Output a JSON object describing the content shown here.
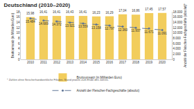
{
  "chart_data": {
    "type": "bar",
    "title": "Deutschland (2010–2020)",
    "categories": [
      "2010",
      "2011",
      "2012",
      "2013",
      "2014",
      "2015",
      "2016",
      "2017",
      "2018",
      "2019",
      "2020"
    ],
    "series": [
      {
        "name": "Bruttoumsatz (in Milliarden Euro)",
        "type": "bar",
        "color": "#f2cd5c",
        "values": [
          15.98,
          16.41,
          16.41,
          16.43,
          16.41,
          16.23,
          16.29,
          17.04,
          16.86,
          17.45,
          17.57
        ],
        "value_labels": [
          "15,98",
          "16,41",
          "16,41",
          "16,43",
          "16,41",
          "16,23",
          "16,29",
          "17,04",
          "16,86",
          "17,45",
          "17,57"
        ]
      },
      {
        "name": "Anzahl der Fleischer-Fachgeschäfte (absolut)",
        "type": "line",
        "axis": "y2",
        "color": "#5f7596",
        "marker": "circle",
        "line_style": "dash",
        "values": [
          15484,
          14669,
          14372,
          13921,
          13559,
          13158,
          12797,
          12360,
          11937,
          11671,
          11091
        ],
        "value_labels": [
          "15.484",
          "14.669",
          "14.372",
          "13.921",
          "13.559",
          "13.158",
          "12.797",
          "12.360",
          "11.937",
          "11.671",
          "11.091"
        ]
      }
    ],
    "ylabel": "Bruttoumsatz (in Milliarden Euro)",
    "y2label": "Anzahl der Fleischer-Fachgeschäfte (absolut)*",
    "ylim": [
      0,
      18
    ],
    "yticks": [
      0,
      2,
      4,
      6,
      8,
      10,
      12,
      14,
      16,
      18
    ],
    "y2lim": [
      0,
      18000
    ],
    "y2ticks": [
      0,
      {
        "value": 2000,
        "label": "2.000"
      },
      {
        "value": 4000,
        "label": "4.000"
      },
      {
        "value": 6000,
        "label": "6.000"
      },
      {
        "value": 8000,
        "label": "8.000"
      },
      {
        "value": 10000,
        "label": "10.000"
      },
      {
        "value": 12000,
        "label": "12.000"
      },
      {
        "value": 14000,
        "label": "14.000"
      },
      {
        "value": 16000,
        "label": "16.000"
      },
      {
        "value": 18000,
        "label": "18.000"
      }
    ],
    "data_labels": true,
    "legend": "bottom",
    "grid": false,
    "annotations": [
      "* Zahlen ohne fleischerhandwerkliche Filialen, Stand jeweils zum Ende des Jahres."
    ]
  }
}
